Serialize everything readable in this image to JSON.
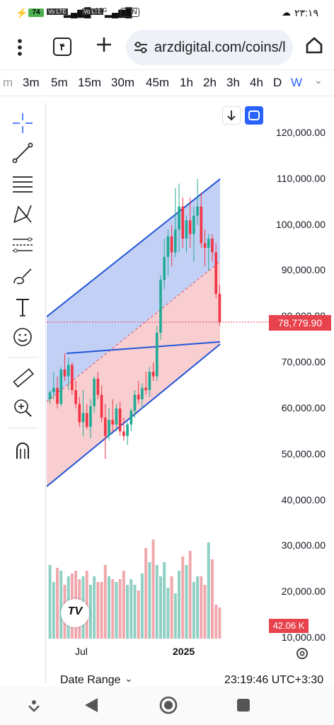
{
  "status": {
    "battery": "74",
    "network_1": "Vo LTE",
    "network_2": "Vo LTE",
    "speed": "4.5G",
    "vpn": "VPN",
    "time": "۲۳:۱۹"
  },
  "browser": {
    "tab_count": "۴",
    "url": "arzdigital.com/coins/l"
  },
  "timeframes": [
    "m",
    "3m",
    "5m",
    "15m",
    "30m",
    "45m",
    "1h",
    "2h",
    "3h",
    "4h",
    "D",
    "W"
  ],
  "selected_timeframe": "W",
  "chart": {
    "price_axis": [
      "120,000.00",
      "110,000.00",
      "100,000.00",
      "90,000.00",
      "80,000.00",
      "70,000.00",
      "60,000.00",
      "50,000.00",
      "40,000.00",
      "30,000.00",
      "20,000.00",
      "10,000.00"
    ],
    "current_price": "78,779.90",
    "volume_label": "42.06 K",
    "time_axis": [
      "Jul",
      "2025"
    ],
    "date_range": "Date Range",
    "clock": "23:19:46 UTC+3:30",
    "logo": "TV",
    "colors": {
      "up": "#22ab94",
      "down": "#f23645",
      "channel_line": "#2255d6",
      "upper_fill": "#b9c8f5",
      "lower_fill": "#f7c5c9",
      "label_red": "#e8424d"
    }
  },
  "chart_data": {
    "type": "candlestick",
    "y_axis": {
      "min": 10000,
      "max": 120000
    },
    "ohlc": [
      [
        62000,
        64000,
        61000,
        63500
      ],
      [
        63500,
        68000,
        62000,
        64500
      ],
      [
        64500,
        67000,
        60000,
        61000
      ],
      [
        61000,
        69000,
        60500,
        68500
      ],
      [
        68500,
        72000,
        66000,
        67000
      ],
      [
        67000,
        71000,
        64000,
        69500
      ],
      [
        69500,
        70000,
        63000,
        64000
      ],
      [
        64000,
        66000,
        60000,
        61000
      ],
      [
        61000,
        62500,
        56000,
        57000
      ],
      [
        57000,
        64000,
        54000,
        59000
      ],
      [
        59000,
        61000,
        55500,
        56000
      ],
      [
        56000,
        62000,
        53500,
        60500
      ],
      [
        60500,
        67000,
        59000,
        66500
      ],
      [
        66500,
        68000,
        62000,
        63000
      ],
      [
        63000,
        65000,
        57000,
        58000
      ],
      [
        58000,
        61000,
        49000,
        54000
      ],
      [
        54000,
        60000,
        53000,
        57500
      ],
      [
        57500,
        62000,
        55000,
        56500
      ],
      [
        56500,
        61000,
        55000,
        60000
      ],
      [
        60000,
        61500,
        54000,
        55000
      ],
      [
        55000,
        58000,
        53000,
        54000
      ],
      [
        54000,
        57000,
        52000,
        56500
      ],
      [
        56500,
        60000,
        55000,
        59500
      ],
      [
        59500,
        64000,
        58000,
        63000
      ],
      [
        63000,
        66000,
        61000,
        62000
      ],
      [
        62000,
        65500,
        60000,
        64500
      ],
      [
        64500,
        68000,
        63000,
        64000
      ],
      [
        64000,
        69000,
        62500,
        68000
      ],
      [
        68000,
        70000,
        66000,
        67000
      ],
      [
        67000,
        78000,
        66000,
        76500
      ],
      [
        76500,
        89000,
        75000,
        88000
      ],
      [
        88000,
        97000,
        86000,
        93000
      ],
      [
        93000,
        99000,
        89000,
        97500
      ],
      [
        97500,
        100000,
        91000,
        94000
      ],
      [
        94000,
        108000,
        93000,
        99000
      ],
      [
        99000,
        109000,
        94000,
        104000
      ],
      [
        104000,
        106000,
        95000,
        97000
      ],
      [
        97000,
        102000,
        94000,
        101000
      ],
      [
        101000,
        106000,
        95000,
        98000
      ],
      [
        98000,
        104000,
        92000,
        102000
      ],
      [
        102000,
        110000,
        100000,
        104000
      ],
      [
        104000,
        107000,
        95000,
        96000
      ],
      [
        96000,
        99000,
        91000,
        95000
      ],
      [
        95000,
        98000,
        90000,
        97000
      ],
      [
        97000,
        98000,
        92000,
        94000
      ],
      [
        94000,
        96000,
        84000,
        85000
      ],
      [
        85000,
        87000,
        78000,
        78800
      ]
    ],
    "volume": [
      26,
      20,
      25,
      24,
      19,
      22,
      23,
      24,
      21,
      22,
      24,
      19,
      22,
      20,
      20,
      26,
      22,
      21,
      20,
      21,
      24,
      19,
      21,
      19,
      17,
      23,
      32,
      27,
      35,
      26,
      22,
      27,
      18,
      22,
      16,
      24,
      29,
      26,
      31,
      20,
      22,
      22,
      19,
      34,
      28,
      12,
      11
    ],
    "channel": {
      "upper_start": 80000,
      "upper_end": 110000,
      "lower_start": 43000,
      "lower_end": 74000,
      "mid_start": 61500,
      "mid_end": 92000
    },
    "trendline": {
      "start": 72000,
      "end": 74500
    }
  }
}
